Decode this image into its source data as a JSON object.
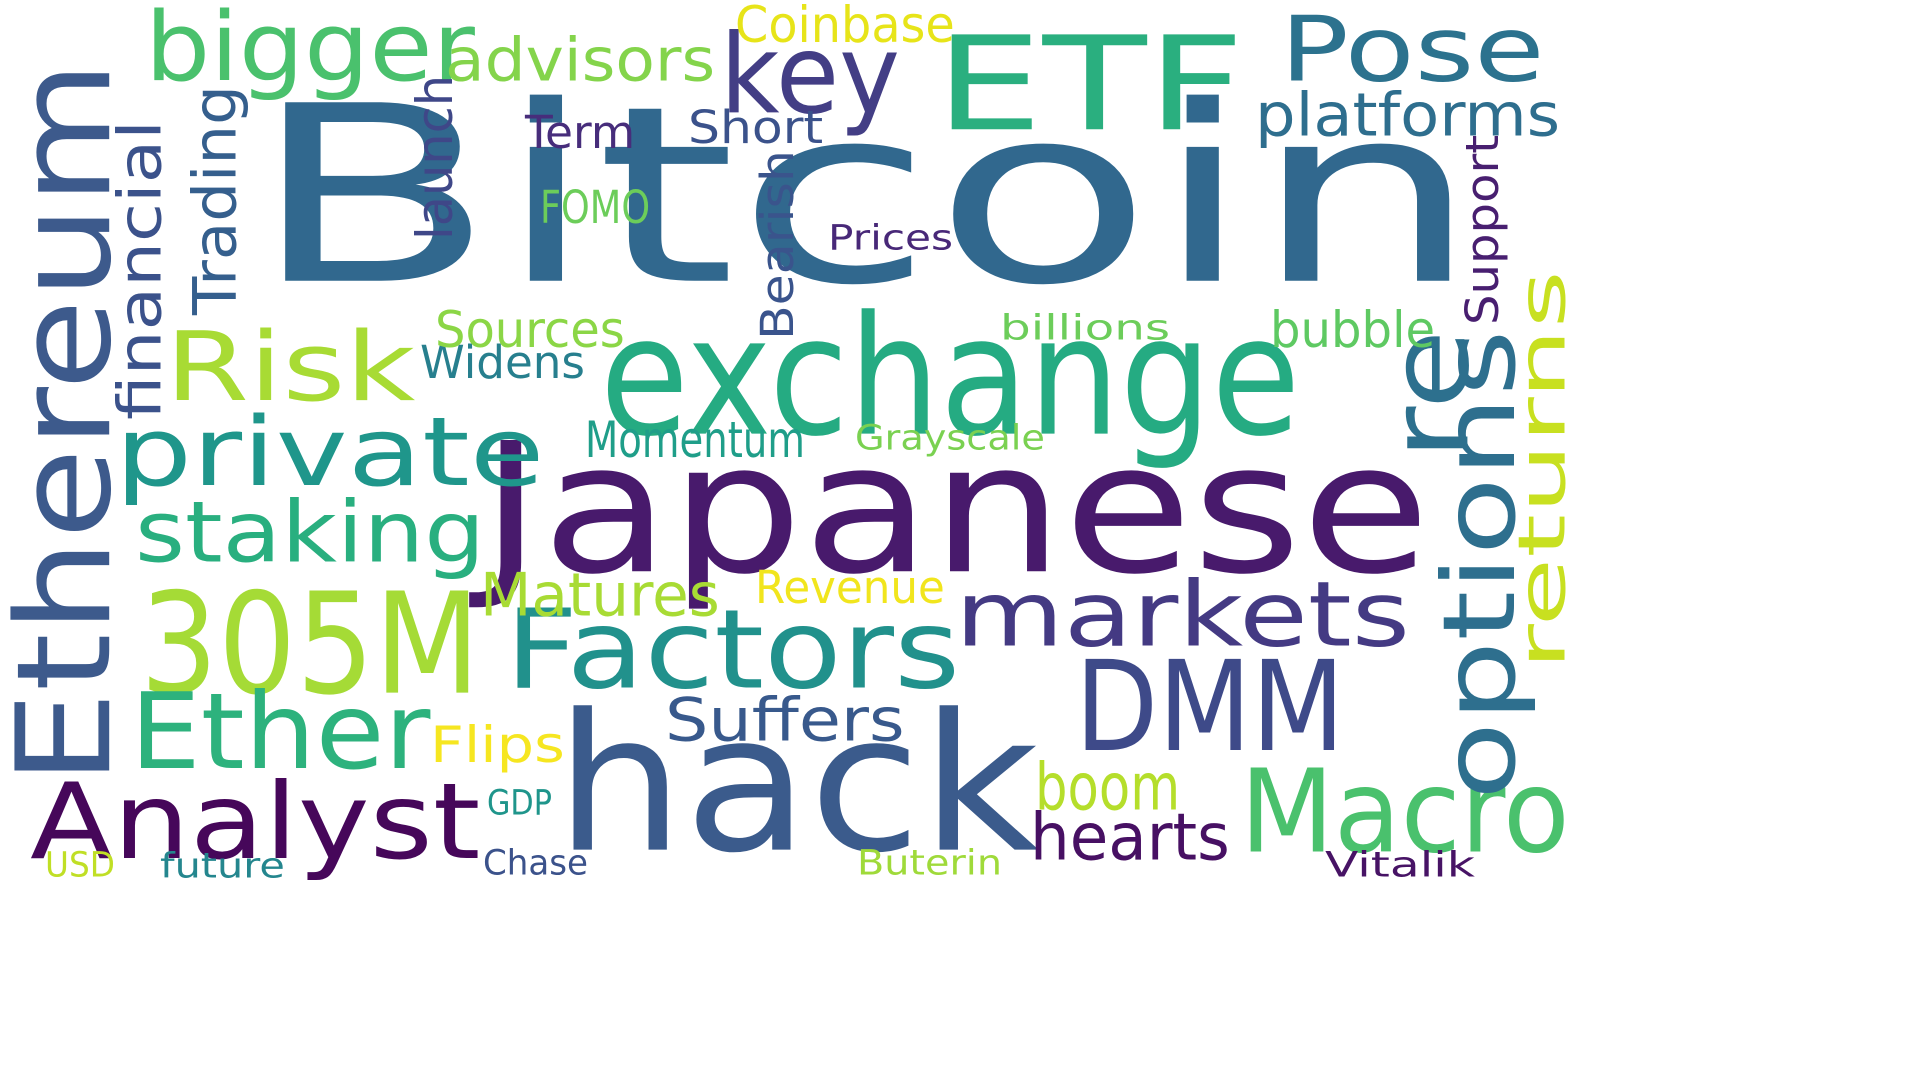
{
  "words": [
    {
      "text": "Bitcoin",
      "color": "#31688e",
      "vertical": false
    },
    {
      "text": "Japanese",
      "color": "#481a6c",
      "vertical": false
    },
    {
      "text": "hack",
      "color": "#3b5b8c",
      "vertical": false
    },
    {
      "text": "Ethereum",
      "color": "#3d5a8c",
      "vertical": true
    },
    {
      "text": "exchange",
      "color": "#25ab82",
      "vertical": false
    },
    {
      "text": "ETF",
      "color": "#2aaf7f",
      "vertical": false
    },
    {
      "text": "DMM",
      "color": "#3e4a89",
      "vertical": false
    },
    {
      "text": "305M",
      "color": "#a5db36",
      "vertical": false
    },
    {
      "text": "Macro",
      "color": "#4ac16d",
      "vertical": false
    },
    {
      "text": "Factors",
      "color": "#21918c",
      "vertical": false
    },
    {
      "text": "Analyst",
      "color": "#46075a",
      "vertical": false
    },
    {
      "text": "Ether",
      "color": "#2db27d",
      "vertical": false
    },
    {
      "text": "options",
      "color": "#2e6f8e",
      "vertical": true
    },
    {
      "text": "Pose",
      "color": "#2c728e",
      "vertical": false
    },
    {
      "text": "key",
      "color": "#433e85",
      "vertical": false
    },
    {
      "text": "Risk",
      "color": "#a8db34",
      "vertical": false
    },
    {
      "text": "private",
      "color": "#1f968b",
      "vertical": false
    },
    {
      "text": "markets",
      "color": "#443a83",
      "vertical": false
    },
    {
      "text": "bigger",
      "color": "#4ac16d",
      "vertical": false
    },
    {
      "text": "returns",
      "color": "#c8e020",
      "vertical": true
    },
    {
      "text": "staking",
      "color": "#29af7f",
      "vertical": false
    },
    {
      "text": "re",
      "color": "#2d708e",
      "vertical": true
    },
    {
      "text": "hearts",
      "color": "#471063",
      "vertical": false
    },
    {
      "text": "Suffers",
      "color": "#38598c",
      "vertical": false
    },
    {
      "text": "boom",
      "color": "#b5de2b",
      "vertical": false
    },
    {
      "text": "platforms",
      "color": "#2e6e8e",
      "vertical": false
    },
    {
      "text": "advisors",
      "color": "#84d44b",
      "vertical": false
    },
    {
      "text": "Matures",
      "color": "#a8db34",
      "vertical": false
    },
    {
      "text": "financial",
      "color": "#3b528b",
      "vertical": true
    },
    {
      "text": "Trading",
      "color": "#355f8d",
      "vertical": true
    },
    {
      "text": "Momentum",
      "color": "#1f9e89",
      "vertical": false
    },
    {
      "text": "Widens",
      "color": "#277f8e",
      "vertical": false
    },
    {
      "text": "Revenue",
      "color": "#f1e51d",
      "vertical": false
    },
    {
      "text": "Flips",
      "color": "#f6e620",
      "vertical": false
    },
    {
      "text": "Coinbase",
      "color": "#e7e419",
      "vertical": false
    },
    {
      "text": "Sources",
      "color": "#8bd646",
      "vertical": false
    },
    {
      "text": "bubble",
      "color": "#5ec962",
      "vertical": false
    },
    {
      "text": "Bearish",
      "color": "#3a548c",
      "vertical": true
    },
    {
      "text": "Short",
      "color": "#3b528b",
      "vertical": false
    },
    {
      "text": "Term",
      "color": "#472d7b",
      "vertical": false
    },
    {
      "text": "launch",
      "color": "#3f4788",
      "vertical": true
    },
    {
      "text": "FOMO",
      "color": "#6ccd5a",
      "vertical": false
    },
    {
      "text": "Support",
      "color": "#481f70",
      "vertical": true
    },
    {
      "text": "Prices",
      "color": "#482878",
      "vertical": false
    },
    {
      "text": "Grayscale",
      "color": "#7ad151",
      "vertical": false
    },
    {
      "text": "billions",
      "color": "#6ccd5a",
      "vertical": false
    },
    {
      "text": "GDP",
      "color": "#1f958b",
      "vertical": false
    },
    {
      "text": "future",
      "color": "#24868e",
      "vertical": false
    },
    {
      "text": "Chase",
      "color": "#3b528b",
      "vertical": false
    },
    {
      "text": "Buterin",
      "color": "#9fda3a",
      "vertical": false
    },
    {
      "text": "Vitalik",
      "color": "#471365",
      "vertical": false
    },
    {
      "text": "USD",
      "color": "#c0df25",
      "vertical": false
    }
  ]
}
